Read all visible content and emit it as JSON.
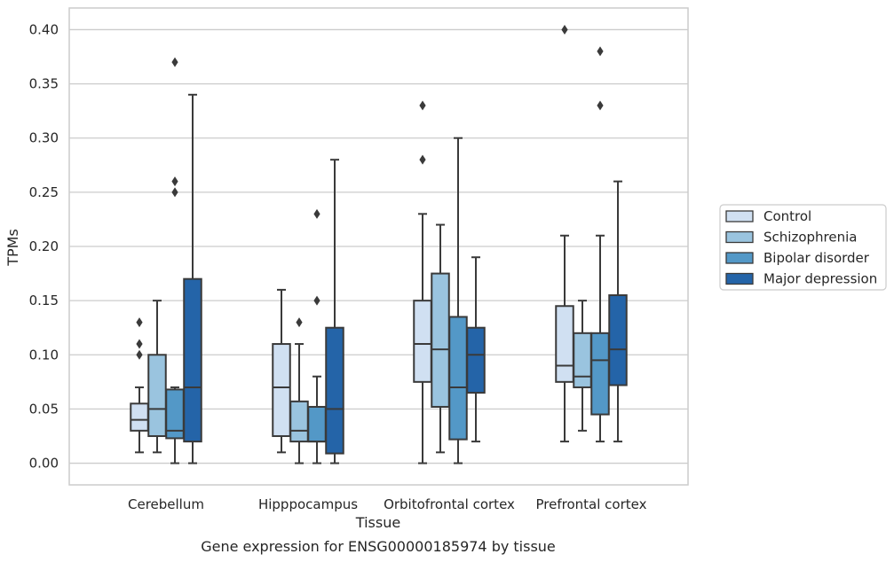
{
  "chart_data": {
    "type": "box",
    "title": "",
    "caption": "Gene expression for ENSG00000185974 by tissue",
    "xlabel": "Tissue",
    "ylabel": "TPMs",
    "ylim": [
      -0.02,
      0.42
    ],
    "yticks": [
      "0.00",
      "0.05",
      "0.10",
      "0.15",
      "0.20",
      "0.25",
      "0.30",
      "0.35",
      "0.40"
    ],
    "ytick_values": [
      0,
      0.05,
      0.1,
      0.15,
      0.2,
      0.25,
      0.3,
      0.35,
      0.4
    ],
    "grid": "horizontal",
    "legend_placement": "center-right, outside",
    "categories": [
      "Cerebellum",
      "Hipppocampus",
      "Orbitofrontal cortex",
      "Prefrontal cortex"
    ],
    "series": [
      {
        "name": "Control",
        "color": "#d0e0f2",
        "boxes": [
          {
            "min": 0.01,
            "q1": 0.03,
            "median": 0.04,
            "q3": 0.055,
            "max": 0.07,
            "outliers": [
              0.1,
              0.11,
              0.13
            ]
          },
          {
            "min": 0.01,
            "q1": 0.025,
            "median": 0.07,
            "q3": 0.11,
            "max": 0.16,
            "outliers": []
          },
          {
            "min": 0.0,
            "q1": 0.075,
            "median": 0.11,
            "q3": 0.15,
            "max": 0.23,
            "outliers": [
              0.28,
              0.33
            ]
          },
          {
            "min": 0.02,
            "q1": 0.075,
            "median": 0.09,
            "q3": 0.145,
            "max": 0.21,
            "outliers": [
              0.4
            ]
          }
        ]
      },
      {
        "name": "Schizophrenia",
        "color": "#9ac4df",
        "boxes": [
          {
            "min": 0.01,
            "q1": 0.025,
            "median": 0.05,
            "q3": 0.1,
            "max": 0.15,
            "outliers": []
          },
          {
            "min": 0.0,
            "q1": 0.02,
            "median": 0.03,
            "q3": 0.057,
            "max": 0.11,
            "outliers": [
              0.13
            ]
          },
          {
            "min": 0.01,
            "q1": 0.052,
            "median": 0.105,
            "q3": 0.175,
            "max": 0.22,
            "outliers": []
          },
          {
            "min": 0.03,
            "q1": 0.07,
            "median": 0.08,
            "q3": 0.12,
            "max": 0.15,
            "outliers": []
          }
        ]
      },
      {
        "name": "Bipolar disorder",
        "color": "#5398c7",
        "boxes": [
          {
            "min": 0.0,
            "q1": 0.023,
            "median": 0.03,
            "q3": 0.068,
            "max": 0.07,
            "outliers": [
              0.25,
              0.26,
              0.37
            ]
          },
          {
            "min": 0.0,
            "q1": 0.02,
            "median": 0.02,
            "q3": 0.052,
            "max": 0.08,
            "outliers": [
              0.15,
              0.23
            ]
          },
          {
            "min": 0.0,
            "q1": 0.022,
            "median": 0.07,
            "q3": 0.135,
            "max": 0.3,
            "outliers": []
          },
          {
            "min": 0.02,
            "q1": 0.045,
            "median": 0.095,
            "q3": 0.12,
            "max": 0.21,
            "outliers": [
              0.33,
              0.38
            ]
          }
        ]
      },
      {
        "name": "Major depression",
        "color": "#2464a8",
        "boxes": [
          {
            "min": 0.0,
            "q1": 0.02,
            "median": 0.07,
            "q3": 0.17,
            "max": 0.34,
            "outliers": []
          },
          {
            "min": 0.0,
            "q1": 0.009,
            "median": 0.05,
            "q3": 0.125,
            "max": 0.28,
            "outliers": []
          },
          {
            "min": 0.02,
            "q1": 0.065,
            "median": 0.1,
            "q3": 0.125,
            "max": 0.19,
            "outliers": []
          },
          {
            "min": 0.02,
            "q1": 0.072,
            "median": 0.105,
            "q3": 0.155,
            "max": 0.26,
            "outliers": []
          }
        ]
      }
    ]
  },
  "style": {
    "grid_color": "#cccccc",
    "frame_color": "#cccccc",
    "line_color": "#3a3a3a"
  }
}
